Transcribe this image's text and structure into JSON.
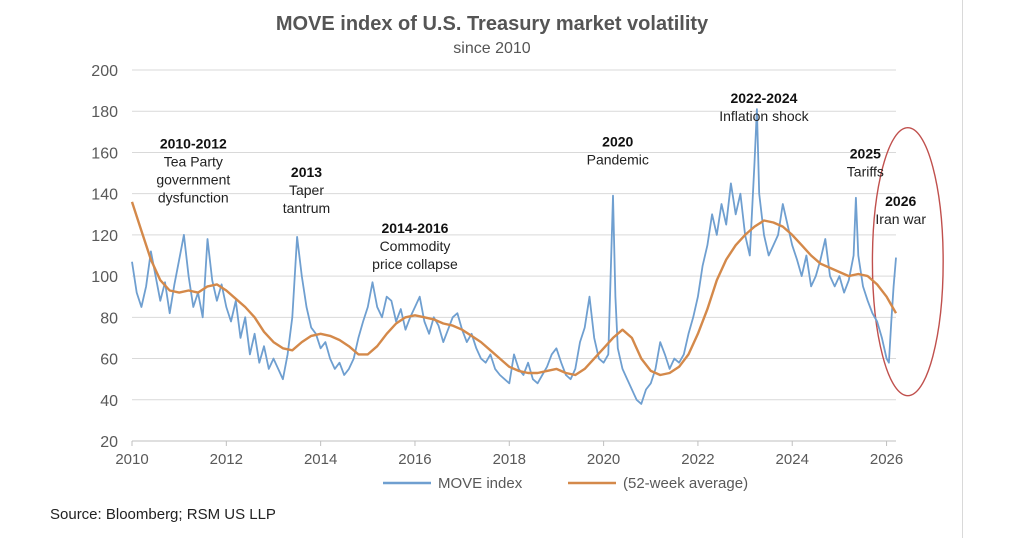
{
  "chart_data": {
    "type": "line",
    "title": "MOVE index of U.S. Treasury market volatility",
    "subtitle": "since 2010",
    "xlabel": "",
    "ylabel": "",
    "xlim": [
      2010,
      2026.2
    ],
    "ylim": [
      20,
      200
    ],
    "x_ticks": [
      2010,
      2012,
      2014,
      2016,
      2018,
      2020,
      2022,
      2024,
      2026
    ],
    "y_ticks": [
      20,
      40,
      60,
      80,
      100,
      120,
      140,
      160,
      180,
      200
    ],
    "grid": "horizontal",
    "legend_position": "bottom-center",
    "series": [
      {
        "name": "MOVE index",
        "color": "#6f9fd0",
        "points": [
          [
            2010.0,
            107
          ],
          [
            2010.1,
            92
          ],
          [
            2010.2,
            85
          ],
          [
            2010.3,
            95
          ],
          [
            2010.4,
            112
          ],
          [
            2010.5,
            100
          ],
          [
            2010.6,
            88
          ],
          [
            2010.7,
            97
          ],
          [
            2010.8,
            82
          ],
          [
            2010.9,
            96
          ],
          [
            2011.0,
            108
          ],
          [
            2011.1,
            120
          ],
          [
            2011.2,
            100
          ],
          [
            2011.3,
            85
          ],
          [
            2011.4,
            92
          ],
          [
            2011.5,
            80
          ],
          [
            2011.6,
            118
          ],
          [
            2011.7,
            98
          ],
          [
            2011.8,
            88
          ],
          [
            2011.9,
            96
          ],
          [
            2012.0,
            85
          ],
          [
            2012.1,
            78
          ],
          [
            2012.2,
            88
          ],
          [
            2012.3,
            70
          ],
          [
            2012.4,
            80
          ],
          [
            2012.5,
            62
          ],
          [
            2012.6,
            72
          ],
          [
            2012.7,
            58
          ],
          [
            2012.8,
            66
          ],
          [
            2012.9,
            55
          ],
          [
            2013.0,
            60
          ],
          [
            2013.1,
            55
          ],
          [
            2013.2,
            50
          ],
          [
            2013.3,
            62
          ],
          [
            2013.4,
            80
          ],
          [
            2013.5,
            119
          ],
          [
            2013.6,
            100
          ],
          [
            2013.7,
            85
          ],
          [
            2013.8,
            75
          ],
          [
            2013.9,
            72
          ],
          [
            2014.0,
            65
          ],
          [
            2014.1,
            68
          ],
          [
            2014.2,
            60
          ],
          [
            2014.3,
            55
          ],
          [
            2014.4,
            58
          ],
          [
            2014.5,
            52
          ],
          [
            2014.6,
            55
          ],
          [
            2014.7,
            60
          ],
          [
            2014.8,
            70
          ],
          [
            2014.9,
            78
          ],
          [
            2015.0,
            85
          ],
          [
            2015.1,
            97
          ],
          [
            2015.2,
            85
          ],
          [
            2015.3,
            80
          ],
          [
            2015.4,
            90
          ],
          [
            2015.5,
            88
          ],
          [
            2015.6,
            78
          ],
          [
            2015.7,
            84
          ],
          [
            2015.8,
            74
          ],
          [
            2015.9,
            80
          ],
          [
            2016.0,
            85
          ],
          [
            2016.1,
            90
          ],
          [
            2016.2,
            78
          ],
          [
            2016.3,
            72
          ],
          [
            2016.4,
            80
          ],
          [
            2016.5,
            76
          ],
          [
            2016.6,
            68
          ],
          [
            2016.7,
            74
          ],
          [
            2016.8,
            80
          ],
          [
            2016.9,
            82
          ],
          [
            2017.0,
            74
          ],
          [
            2017.1,
            68
          ],
          [
            2017.2,
            72
          ],
          [
            2017.3,
            65
          ],
          [
            2017.4,
            60
          ],
          [
            2017.5,
            58
          ],
          [
            2017.6,
            62
          ],
          [
            2017.7,
            55
          ],
          [
            2017.8,
            52
          ],
          [
            2017.9,
            50
          ],
          [
            2018.0,
            48
          ],
          [
            2018.1,
            62
          ],
          [
            2018.2,
            55
          ],
          [
            2018.3,
            52
          ],
          [
            2018.4,
            58
          ],
          [
            2018.5,
            50
          ],
          [
            2018.6,
            48
          ],
          [
            2018.7,
            52
          ],
          [
            2018.8,
            56
          ],
          [
            2018.9,
            62
          ],
          [
            2019.0,
            65
          ],
          [
            2019.1,
            58
          ],
          [
            2019.2,
            52
          ],
          [
            2019.3,
            50
          ],
          [
            2019.4,
            55
          ],
          [
            2019.5,
            68
          ],
          [
            2019.6,
            75
          ],
          [
            2019.7,
            90
          ],
          [
            2019.8,
            70
          ],
          [
            2019.9,
            60
          ],
          [
            2020.0,
            58
          ],
          [
            2020.1,
            62
          ],
          [
            2020.2,
            139
          ],
          [
            2020.25,
            90
          ],
          [
            2020.3,
            65
          ],
          [
            2020.4,
            55
          ],
          [
            2020.5,
            50
          ],
          [
            2020.6,
            45
          ],
          [
            2020.7,
            40
          ],
          [
            2020.8,
            38
          ],
          [
            2020.9,
            45
          ],
          [
            2021.0,
            48
          ],
          [
            2021.1,
            55
          ],
          [
            2021.2,
            68
          ],
          [
            2021.3,
            62
          ],
          [
            2021.4,
            55
          ],
          [
            2021.5,
            60
          ],
          [
            2021.6,
            58
          ],
          [
            2021.7,
            62
          ],
          [
            2021.8,
            72
          ],
          [
            2021.9,
            80
          ],
          [
            2022.0,
            90
          ],
          [
            2022.1,
            105
          ],
          [
            2022.2,
            115
          ],
          [
            2022.3,
            130
          ],
          [
            2022.4,
            120
          ],
          [
            2022.5,
            135
          ],
          [
            2022.6,
            125
          ],
          [
            2022.7,
            145
          ],
          [
            2022.8,
            130
          ],
          [
            2022.9,
            140
          ],
          [
            2023.0,
            120
          ],
          [
            2023.1,
            110
          ],
          [
            2023.2,
            155
          ],
          [
            2023.25,
            181
          ],
          [
            2023.3,
            140
          ],
          [
            2023.4,
            120
          ],
          [
            2023.5,
            110
          ],
          [
            2023.6,
            115
          ],
          [
            2023.7,
            120
          ],
          [
            2023.8,
            135
          ],
          [
            2023.9,
            125
          ],
          [
            2024.0,
            115
          ],
          [
            2024.1,
            108
          ],
          [
            2024.2,
            100
          ],
          [
            2024.3,
            110
          ],
          [
            2024.4,
            95
          ],
          [
            2024.5,
            100
          ],
          [
            2024.6,
            108
          ],
          [
            2024.7,
            118
          ],
          [
            2024.8,
            100
          ],
          [
            2024.9,
            95
          ],
          [
            2025.0,
            100
          ],
          [
            2025.1,
            92
          ],
          [
            2025.2,
            98
          ],
          [
            2025.3,
            110
          ],
          [
            2025.35,
            138
          ],
          [
            2025.4,
            110
          ],
          [
            2025.5,
            95
          ],
          [
            2025.6,
            88
          ],
          [
            2025.7,
            82
          ],
          [
            2025.8,
            78
          ],
          [
            2025.9,
            70
          ],
          [
            2026.0,
            60
          ],
          [
            2026.05,
            58
          ],
          [
            2026.1,
            78
          ],
          [
            2026.15,
            95
          ],
          [
            2026.2,
            109
          ]
        ]
      },
      {
        "name": "(52-week average)",
        "color": "#d4894a",
        "points": [
          [
            2010.0,
            136
          ],
          [
            2010.2,
            122
          ],
          [
            2010.4,
            108
          ],
          [
            2010.6,
            98
          ],
          [
            2010.8,
            93
          ],
          [
            2011.0,
            92
          ],
          [
            2011.2,
            93
          ],
          [
            2011.4,
            92
          ],
          [
            2011.6,
            95
          ],
          [
            2011.8,
            96
          ],
          [
            2012.0,
            93
          ],
          [
            2012.2,
            89
          ],
          [
            2012.4,
            85
          ],
          [
            2012.6,
            80
          ],
          [
            2012.8,
            73
          ],
          [
            2013.0,
            68
          ],
          [
            2013.2,
            65
          ],
          [
            2013.4,
            64
          ],
          [
            2013.6,
            68
          ],
          [
            2013.8,
            71
          ],
          [
            2014.0,
            72
          ],
          [
            2014.2,
            71
          ],
          [
            2014.4,
            69
          ],
          [
            2014.6,
            66
          ],
          [
            2014.8,
            62
          ],
          [
            2015.0,
            62
          ],
          [
            2015.2,
            66
          ],
          [
            2015.4,
            72
          ],
          [
            2015.6,
            77
          ],
          [
            2015.8,
            80
          ],
          [
            2016.0,
            81
          ],
          [
            2016.2,
            80
          ],
          [
            2016.4,
            79
          ],
          [
            2016.6,
            77
          ],
          [
            2016.8,
            76
          ],
          [
            2017.0,
            74
          ],
          [
            2017.2,
            71
          ],
          [
            2017.4,
            68
          ],
          [
            2017.6,
            64
          ],
          [
            2017.8,
            60
          ],
          [
            2018.0,
            56
          ],
          [
            2018.2,
            54
          ],
          [
            2018.4,
            53
          ],
          [
            2018.6,
            53
          ],
          [
            2018.8,
            54
          ],
          [
            2019.0,
            55
          ],
          [
            2019.2,
            53
          ],
          [
            2019.4,
            52
          ],
          [
            2019.6,
            55
          ],
          [
            2019.8,
            60
          ],
          [
            2020.0,
            65
          ],
          [
            2020.2,
            70
          ],
          [
            2020.4,
            74
          ],
          [
            2020.6,
            70
          ],
          [
            2020.8,
            60
          ],
          [
            2021.0,
            54
          ],
          [
            2021.2,
            52
          ],
          [
            2021.4,
            53
          ],
          [
            2021.6,
            56
          ],
          [
            2021.8,
            62
          ],
          [
            2022.0,
            72
          ],
          [
            2022.2,
            84
          ],
          [
            2022.4,
            98
          ],
          [
            2022.6,
            108
          ],
          [
            2022.8,
            115
          ],
          [
            2023.0,
            120
          ],
          [
            2023.2,
            124
          ],
          [
            2023.4,
            127
          ],
          [
            2023.6,
            126
          ],
          [
            2023.8,
            124
          ],
          [
            2024.0,
            120
          ],
          [
            2024.2,
            115
          ],
          [
            2024.4,
            110
          ],
          [
            2024.6,
            106
          ],
          [
            2024.8,
            104
          ],
          [
            2025.0,
            102
          ],
          [
            2025.2,
            100
          ],
          [
            2025.4,
            101
          ],
          [
            2025.6,
            100
          ],
          [
            2025.8,
            96
          ],
          [
            2026.0,
            90
          ],
          [
            2026.2,
            82
          ]
        ]
      }
    ],
    "annotations": [
      {
        "bold": "2010-2012",
        "lines": [
          "Tea Party",
          "government",
          "dysfunction"
        ],
        "x": 2011.3,
        "y": 162
      },
      {
        "bold": "2013",
        "lines": [
          "Taper",
          "tantrum"
        ],
        "x": 2013.7,
        "y": 148
      },
      {
        "bold": "2014-2016",
        "lines": [
          "Commodity",
          "price collapse"
        ],
        "x": 2016.0,
        "y": 121
      },
      {
        "bold": "2020",
        "lines": [
          "Pandemic"
        ],
        "x": 2020.3,
        "y": 163
      },
      {
        "bold": "2022-2024",
        "lines": [
          "Inflation shock"
        ],
        "x": 2023.4,
        "y": 184
      },
      {
        "bold": "2025",
        "lines": [
          "Tariffs"
        ],
        "x": 2025.55,
        "y": 157
      },
      {
        "bold": "2026",
        "lines": [
          "Iran war"
        ],
        "x": 2026.3,
        "y": 134
      }
    ],
    "highlight": {
      "shape": "ellipse",
      "color": "#c0504d",
      "x_center": 2026.45,
      "y_center": 107,
      "x_radius": 0.75,
      "y_radius": 65
    },
    "source": "Source: Bloomberg; RSM US LLP"
  }
}
